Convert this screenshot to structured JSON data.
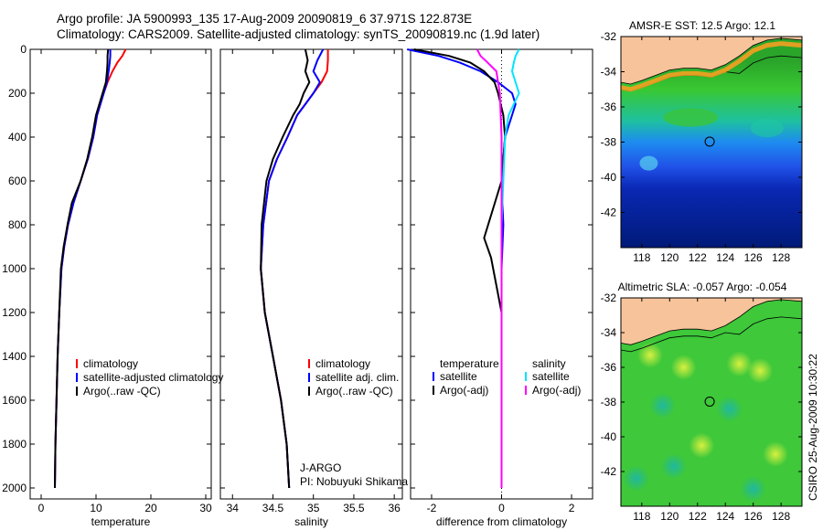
{
  "header": {
    "line1": "Argo profile: JA 5900993_135 17-Aug-2009 20090819_6 37.971S 122.873E",
    "line2": "Climatology: CARS2009. Satellite-adjusted climatology: synTS_20090819.nc (1.9d later)"
  },
  "footer": {
    "stamp": "CSIRO 25-Aug-2009 10:30:22"
  },
  "colors": {
    "climatology": "#ff0000",
    "satellite": "#0000ff",
    "argo": "#000000",
    "sat_salinity": "#00e5ff",
    "argo_salinity": "#ff00ff",
    "land": "#f7c39b"
  },
  "chart_data": [
    {
      "type": "line",
      "panel": "temperature",
      "xlabel": "temperature",
      "ylabel": "",
      "xlim": [
        -2,
        31
      ],
      "ylim": [
        2050,
        0
      ],
      "xticks": [
        0,
        10,
        20,
        30
      ],
      "yticks": [
        0,
        200,
        400,
        600,
        800,
        1000,
        1200,
        1400,
        1600,
        1800,
        2000
      ],
      "legend": [
        "climatology",
        "satellite-adjusted climatology",
        "Argo(..raw -QC)"
      ],
      "legend_placement": "lower-left",
      "series": [
        {
          "name": "climatology",
          "color": "#ff0000",
          "x": [
            15.4,
            14.8,
            13.9,
            13.0,
            12.1,
            11.4,
            10.8,
            10.2,
            9.5,
            8.5,
            7.2,
            5.9,
            4.9,
            4.2,
            3.7,
            3.3,
            3.0,
            2.8,
            2.6,
            2.5
          ],
          "y": [
            0,
            30,
            60,
            100,
            150,
            200,
            250,
            300,
            400,
            500,
            600,
            700,
            800,
            900,
            1000,
            1200,
            1400,
            1600,
            1800,
            2000
          ]
        },
        {
          "name": "satellite-adjusted climatology",
          "color": "#0000ff",
          "x": [
            12.6,
            12.6,
            12.5,
            12.3,
            12.0,
            11.4,
            10.8,
            10.2,
            9.5,
            8.5,
            7.2,
            5.9,
            4.9,
            4.2,
            3.7,
            3.3,
            3.0,
            2.8,
            2.6,
            2.5
          ],
          "y": [
            0,
            30,
            60,
            100,
            150,
            200,
            250,
            300,
            400,
            500,
            600,
            700,
            800,
            900,
            1000,
            1200,
            1400,
            1600,
            1800,
            2000
          ]
        },
        {
          "name": "Argo(..raw -QC)",
          "color": "#000000",
          "x": [
            12.2,
            12.1,
            12.1,
            12.0,
            11.8,
            11.2,
            10.6,
            10.0,
            9.3,
            8.4,
            7.2,
            5.6,
            4.8,
            4.1,
            3.6,
            3.3,
            3.0,
            2.8,
            2.6,
            2.5
          ],
          "y": [
            0,
            30,
            60,
            100,
            150,
            200,
            250,
            300,
            400,
            500,
            600,
            700,
            800,
            900,
            1000,
            1200,
            1400,
            1600,
            1800,
            2000
          ]
        }
      ]
    },
    {
      "type": "line",
      "panel": "salinity",
      "xlabel": "salinity",
      "xlim": [
        33.85,
        36.1
      ],
      "ylim": [
        2050,
        0
      ],
      "xticks": [
        34,
        34.5,
        35,
        35.5,
        36
      ],
      "legend": [
        "climatology",
        "satellite adj. clim.",
        "Argo(..raw -QC)"
      ],
      "legend_placement": "lower-right",
      "annotation": [
        "J-ARGO",
        "PI: Nobuyuki Shikama"
      ],
      "series": [
        {
          "name": "climatology",
          "color": "#ff0000",
          "x": [
            35.18,
            35.18,
            35.17,
            35.1,
            35.0,
            34.9,
            34.8,
            34.68,
            34.55,
            34.45,
            34.38,
            34.35,
            34.4,
            34.5,
            34.6,
            34.67,
            34.7
          ],
          "y": [
            0,
            50,
            100,
            150,
            200,
            250,
            300,
            400,
            500,
            600,
            800,
            1000,
            1200,
            1400,
            1600,
            1800,
            2000
          ]
        },
        {
          "name": "satellite adj. clim.",
          "color": "#0000ff",
          "x": [
            35.12,
            35.05,
            35.0,
            35.08,
            35.0,
            34.9,
            34.8,
            34.68,
            34.55,
            34.45,
            34.38,
            34.35,
            34.4,
            34.5,
            34.6,
            34.67,
            34.7
          ],
          "y": [
            0,
            50,
            100,
            150,
            200,
            250,
            300,
            400,
            500,
            600,
            800,
            1000,
            1200,
            1400,
            1600,
            1800,
            2000
          ]
        },
        {
          "name": "Argo(..raw -QC)",
          "color": "#000000",
          "x": [
            34.9,
            34.93,
            34.9,
            34.95,
            34.88,
            34.83,
            34.75,
            34.62,
            34.5,
            34.42,
            34.36,
            34.35,
            34.4,
            34.5,
            34.6,
            34.67,
            34.7
          ],
          "y": [
            0,
            50,
            100,
            150,
            200,
            250,
            300,
            400,
            500,
            600,
            800,
            1000,
            1200,
            1400,
            1600,
            1800,
            2000
          ]
        }
      ]
    },
    {
      "type": "line",
      "panel": "difference",
      "xlabel": "difference from climatology",
      "xlim": [
        -2.6,
        2.6
      ],
      "ylim": [
        2050,
        0
      ],
      "xticks": [
        -2,
        0,
        2
      ],
      "legend_headers": [
        "temperature",
        "salinity"
      ],
      "legend": [
        "satellite",
        "Argo(-adj)",
        "satellite",
        "Argo(-adj)"
      ],
      "legend_placement": "lower-center",
      "series": [
        {
          "name": "satellite",
          "quantity": "temperature",
          "color": "#0000ff",
          "x": [
            -2.7,
            -1.8,
            -1.2,
            -0.6,
            -0.1,
            0.3,
            0.4,
            0.1,
            0,
            0.05,
            0,
            0,
            0,
            0,
            0
          ],
          "y": [
            0,
            30,
            60,
            100,
            150,
            200,
            250,
            400,
            600,
            800,
            1000,
            1200,
            1400,
            1600,
            2000
          ]
        },
        {
          "name": "Argo(-adj)",
          "quantity": "temperature",
          "color": "#000000",
          "x": [
            -2.5,
            -1.5,
            -0.9,
            -0.5,
            -0.2,
            -0.1,
            0.05,
            0.1,
            0,
            -0.5,
            -0.3,
            0,
            0,
            0,
            0
          ],
          "y": [
            0,
            30,
            60,
            100,
            150,
            200,
            300,
            400,
            600,
            860,
            950,
            1200,
            1400,
            1600,
            2000
          ]
        },
        {
          "name": "satellite",
          "quantity": "salinity",
          "color": "#00e5ff",
          "x": [
            0.5,
            0.4,
            0.35,
            0.3,
            0.4,
            0.5,
            0.2,
            0.1,
            0.05,
            0,
            0,
            0,
            0
          ],
          "y": [
            0,
            30,
            60,
            100,
            150,
            200,
            300,
            400,
            600,
            800,
            1200,
            1600,
            2000
          ]
        },
        {
          "name": "Argo(-adj)",
          "quantity": "salinity",
          "color": "#ff00ff",
          "x": [
            -0.7,
            -0.6,
            -0.4,
            -0.15,
            -0.1,
            -0.05,
            0,
            0,
            0,
            0
          ],
          "y": [
            0,
            30,
            60,
            100,
            150,
            200,
            400,
            800,
            1400,
            2000
          ]
        }
      ]
    },
    {
      "type": "heatmap",
      "panel": "sst_map",
      "title": "AMSR-E SST: 12.5 Argo: 12.1",
      "xlim": [
        116.5,
        129.5
      ],
      "ylim": [
        -44,
        -32
      ],
      "xticks": [
        118,
        120,
        122,
        124,
        126,
        128
      ],
      "yticks": [
        -32,
        -34,
        -36,
        -38,
        -40,
        -42
      ],
      "marker": {
        "lon": 122.873,
        "lat": -37.971
      }
    },
    {
      "type": "heatmap",
      "panel": "sla_map",
      "title": "Altimetric SLA: -0.057 Argo: -0.054",
      "xlim": [
        116.5,
        129.5
      ],
      "ylim": [
        -44,
        -32
      ],
      "xticks": [
        118,
        120,
        122,
        124,
        126,
        128
      ],
      "yticks": [
        -32,
        -34,
        -36,
        -38,
        -40,
        -42
      ],
      "marker": {
        "lon": 122.873,
        "lat": -37.971
      }
    }
  ]
}
